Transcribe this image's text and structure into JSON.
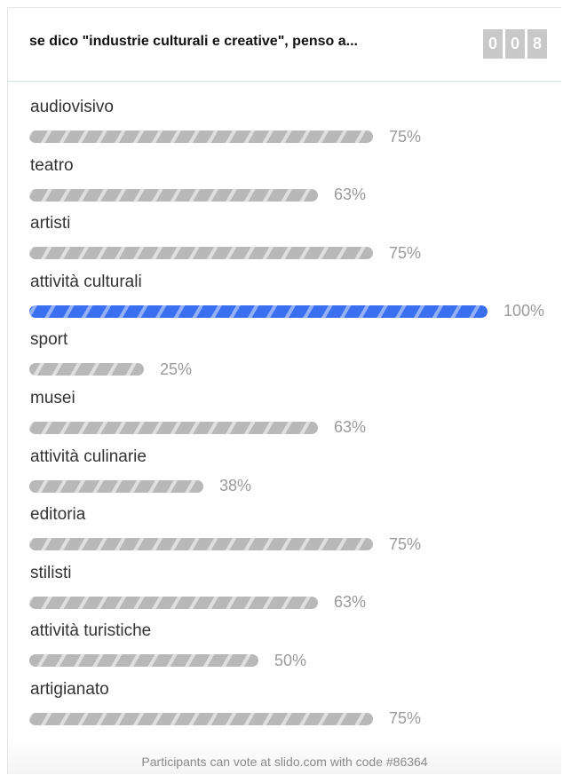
{
  "poll": {
    "question": "se dico \"industrie culturali e creative\", penso a...",
    "vote_count_digits": [
      "0",
      "0",
      "8"
    ]
  },
  "colors": {
    "bar_default": "#b8b8b8",
    "bar_winner": "#3a6ff0",
    "percent_text": "#9a9a9a"
  },
  "options": [
    {
      "label": "audiovisivo",
      "percent_value": 75,
      "percent_text": "75%",
      "winner": false
    },
    {
      "label": "teatro",
      "percent_value": 63,
      "percent_text": "63%",
      "winner": false
    },
    {
      "label": "artisti",
      "percent_value": 75,
      "percent_text": "75%",
      "winner": false
    },
    {
      "label": "attività culturali",
      "percent_value": 100,
      "percent_text": "100%",
      "winner": true
    },
    {
      "label": "sport",
      "percent_value": 25,
      "percent_text": "25%",
      "winner": false
    },
    {
      "label": "musei",
      "percent_value": 63,
      "percent_text": "63%",
      "winner": false
    },
    {
      "label": "attività culinarie",
      "percent_value": 38,
      "percent_text": "38%",
      "winner": false
    },
    {
      "label": "editoria",
      "percent_value": 75,
      "percent_text": "75%",
      "winner": false
    },
    {
      "label": "stilisti",
      "percent_value": 63,
      "percent_text": "63%",
      "winner": false
    },
    {
      "label": "attività turistiche",
      "percent_value": 50,
      "percent_text": "50%",
      "winner": false
    },
    {
      "label": "artigianato",
      "percent_value": 75,
      "percent_text": "75%",
      "winner": false
    }
  ],
  "footer": {
    "text": "Participants can vote at slido.com with code #86364"
  }
}
